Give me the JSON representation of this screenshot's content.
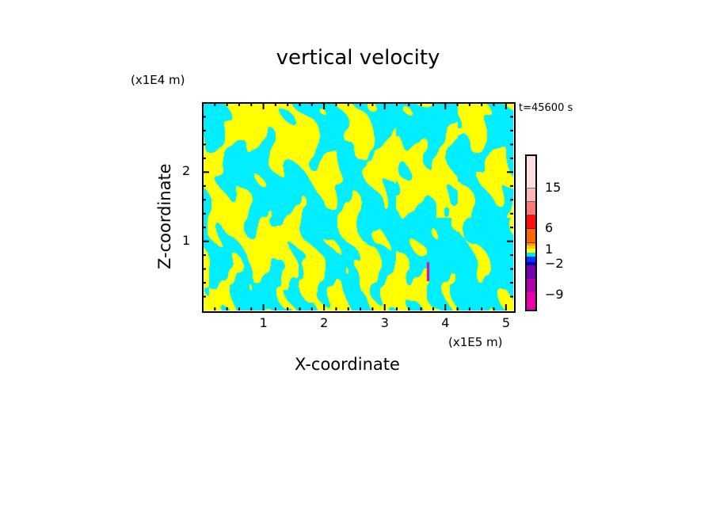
{
  "chart_data": {
    "type": "heatmap",
    "title": "vertical velocity",
    "xlabel": "X-coordinate",
    "ylabel": "Z-coordinate",
    "x_unit": "(x1E5 m)",
    "z_unit": "(x1E4 m)",
    "time_label": "t=45600 s",
    "xlim": [
      0,
      5.12
    ],
    "ylim": [
      0,
      3.0
    ],
    "xticks": [
      "1",
      "2",
      "3",
      "4",
      "5"
    ],
    "xtick_values": [
      1,
      2,
      3,
      4,
      5
    ],
    "yticks": [
      "1",
      "2"
    ],
    "ytick_values": [
      1,
      2
    ],
    "colorbar": {
      "labels": [
        "15",
        "6",
        "1",
        "−2",
        "−9"
      ],
      "colors": [
        "#ffe0e0",
        "#ffb8b8",
        "#ff7878",
        "#ff1010",
        "#ff6600",
        "#ff9900",
        "#ffcc00",
        "#ffff00",
        "#00e5ff",
        "#0033ff",
        "#0000aa",
        "#7000aa",
        "#b000aa",
        "#e800aa"
      ]
    },
    "field_colors": {
      "positive": "#ffff00",
      "negative": "#00eeff",
      "anomaly": "#e800aa"
    }
  }
}
